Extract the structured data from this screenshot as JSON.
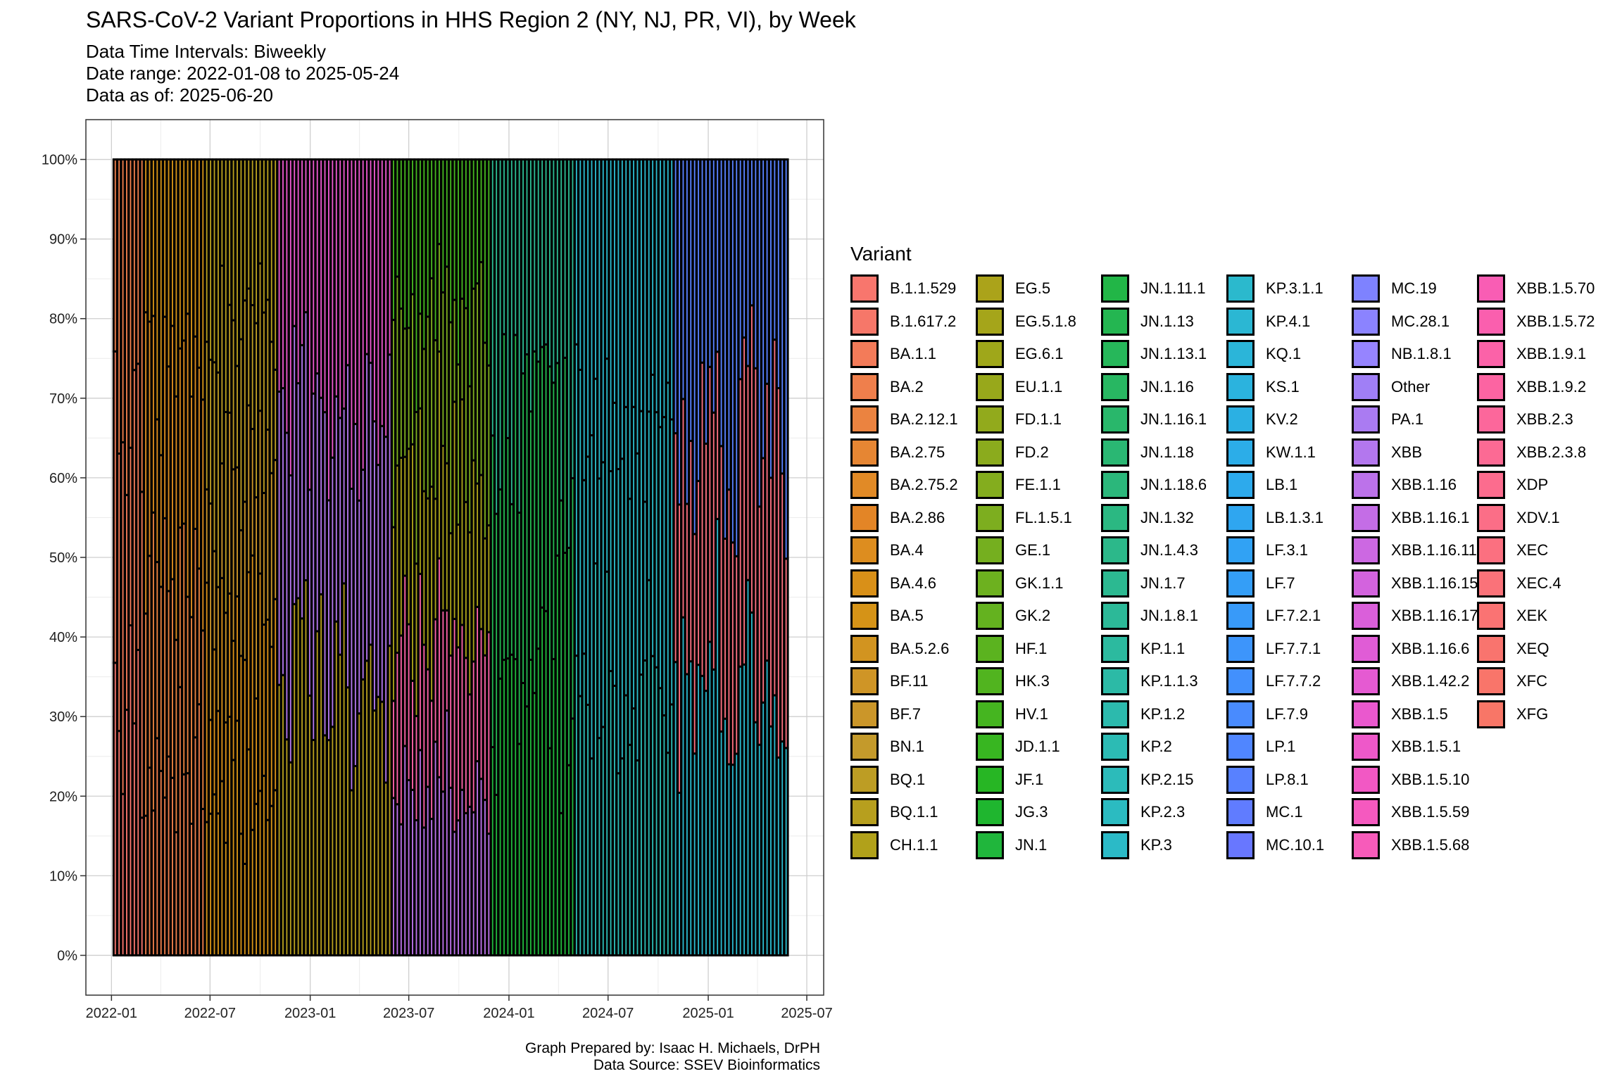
{
  "title": "SARS-CoV-2 Variant Proportions in HHS Region 2 (NY, NJ, PR, VI), by Week",
  "subtitle_lines": [
    "Data Time Intervals: Biweekly",
    "Date range: 2022-01-08 to 2025-05-24",
    "Data as of: 2025-06-20"
  ],
  "caption_lines": [
    "Graph Prepared by: Isaac H. Michaels, DrPH",
    "Data Source: SSEV Bioinformatics"
  ],
  "chart_data": {
    "type": "bar",
    "stacked": true,
    "normalized_to": "percent",
    "x_axis": {
      "type": "date",
      "range": [
        "2021-11-15",
        "2025-08-01"
      ],
      "tick_labels": [
        "2022-01",
        "2022-07",
        "2023-01",
        "2023-07",
        "2024-01",
        "2024-07",
        "2025-01",
        "2025-07"
      ],
      "tick_dates": [
        "2022-01-01",
        "2022-07-01",
        "2023-01-01",
        "2023-07-01",
        "2024-01-01",
        "2024-07-01",
        "2025-01-01",
        "2025-07-01"
      ]
    },
    "y_axis": {
      "range": [
        -5,
        105
      ],
      "tick_labels": [
        "0%",
        "10%",
        "20%",
        "30%",
        "40%",
        "50%",
        "60%",
        "70%",
        "80%",
        "90%",
        "100%"
      ],
      "tick_values": [
        0,
        10,
        20,
        30,
        40,
        50,
        60,
        70,
        80,
        90,
        100
      ]
    },
    "grid": true,
    "bar_outline_color": "#000000",
    "bar_interval_days": 7,
    "date_first": "2022-01-08",
    "date_last": "2025-05-24",
    "legend": {
      "title": "Variant",
      "placement": "right",
      "items": [
        {
          "label": "B.1.1.529",
          "color": "#F8766D"
        },
        {
          "label": "B.1.617.2",
          "color": "#F67769"
        },
        {
          "label": "BA.1.1",
          "color": "#F37B59"
        },
        {
          "label": "BA.2",
          "color": "#EF7F4C"
        },
        {
          "label": "BA.2.12.1",
          "color": "#EB8340"
        },
        {
          "label": "BA.2.75",
          "color": "#E68633"
        },
        {
          "label": "BA.2.75.2",
          "color": "#E18A26"
        },
        {
          "label": "BA.2.86",
          "color": "#E38526"
        },
        {
          "label": "BA.4",
          "color": "#DD8D1F"
        },
        {
          "label": "BA.4.6",
          "color": "#D99018"
        },
        {
          "label": "BA.5",
          "color": "#D59317"
        },
        {
          "label": "BA.5.2.6",
          "color": "#D29420"
        },
        {
          "label": "BF.11",
          "color": "#CF9526"
        },
        {
          "label": "BF.7",
          "color": "#CB9629"
        },
        {
          "label": "BN.1",
          "color": "#C49A2B"
        },
        {
          "label": "BQ.1",
          "color": "#BD9D24"
        },
        {
          "label": "BQ.1.1",
          "color": "#B79F1E"
        },
        {
          "label": "CH.1.1",
          "color": "#B1A11A"
        },
        {
          "label": "EG.5",
          "color": "#ABA31A"
        },
        {
          "label": "EG.5.1.8",
          "color": "#A5A51A"
        },
        {
          "label": "EG.6.1",
          "color": "#9FA71A"
        },
        {
          "label": "EU.1.1",
          "color": "#98A81B"
        },
        {
          "label": "FD.1.1",
          "color": "#92AA1C"
        },
        {
          "label": "FD.2",
          "color": "#8BAB1D"
        },
        {
          "label": "FE.1.1",
          "color": "#84AD1E"
        },
        {
          "label": "FL.1.5.1",
          "color": "#7DAE1F"
        },
        {
          "label": "GE.1",
          "color": "#75AF1F"
        },
        {
          "label": "GK.1.1",
          "color": "#6DB11F"
        },
        {
          "label": "GK.2",
          "color": "#64B21F"
        },
        {
          "label": "HF.1",
          "color": "#5BB31F"
        },
        {
          "label": "HK.3",
          "color": "#51B41F"
        },
        {
          "label": "HV.1",
          "color": "#45B520"
        },
        {
          "label": "JD.1.1",
          "color": "#38B621"
        },
        {
          "label": "JF.1",
          "color": "#27B624"
        },
        {
          "label": "JG.3",
          "color": "#1FB62F"
        },
        {
          "label": "JN.1",
          "color": "#20B63C"
        },
        {
          "label": "JN.1.11.1",
          "color": "#22B647"
        },
        {
          "label": "JN.1.13",
          "color": "#24B651"
        },
        {
          "label": "JN.1.13.1",
          "color": "#26B75A"
        },
        {
          "label": "JN.1.16",
          "color": "#28B762"
        },
        {
          "label": "JN.1.16.1",
          "color": "#29B76B"
        },
        {
          "label": "JN.1.18",
          "color": "#2AB773"
        },
        {
          "label": "JN.1.18.6",
          "color": "#2BB77B"
        },
        {
          "label": "JN.1.32",
          "color": "#2BB882"
        },
        {
          "label": "JN.1.4.3",
          "color": "#2CB88A"
        },
        {
          "label": "JN.1.7",
          "color": "#2CB991"
        },
        {
          "label": "JN.1.8.1",
          "color": "#2CB998"
        },
        {
          "label": "KP.1.1",
          "color": "#2CBA9F"
        },
        {
          "label": "KP.1.1.3",
          "color": "#2CBAA6"
        },
        {
          "label": "KP.1.2",
          "color": "#2CBAAD"
        },
        {
          "label": "KP.2",
          "color": "#2CBBB4"
        },
        {
          "label": "KP.2.15",
          "color": "#2CBBBA"
        },
        {
          "label": "KP.2.3",
          "color": "#2BBBC1"
        },
        {
          "label": "KP.3",
          "color": "#2BBAC7"
        },
        {
          "label": "KP.3.1.1",
          "color": "#2BB9CD"
        },
        {
          "label": "KP.4.1",
          "color": "#2BB7D3"
        },
        {
          "label": "KQ.1",
          "color": "#2BB5D9"
        },
        {
          "label": "KS.1",
          "color": "#2BB3DE"
        },
        {
          "label": "KV.2",
          "color": "#2BB0E3"
        },
        {
          "label": "KW.1.1",
          "color": "#2CADE8"
        },
        {
          "label": "LB.1",
          "color": "#2DAAEC"
        },
        {
          "label": "LB.1.3.1",
          "color": "#2FA6F0"
        },
        {
          "label": "LF.3.1",
          "color": "#31A2F4"
        },
        {
          "label": "LF.7",
          "color": "#349EF7"
        },
        {
          "label": "LF.7.2.1",
          "color": "#389AF9"
        },
        {
          "label": "LF.7.7.1",
          "color": "#3D95FB"
        },
        {
          "label": "LF.7.7.2",
          "color": "#4290FD"
        },
        {
          "label": "LF.7.9",
          "color": "#498BFE"
        },
        {
          "label": "LP.1",
          "color": "#5086FF"
        },
        {
          "label": "LP.8.1",
          "color": "#5881FF"
        },
        {
          "label": "MC.1",
          "color": "#607CFF"
        },
        {
          "label": "MC.10.1",
          "color": "#6877FF"
        },
        {
          "label": "MC.19",
          "color": "#7E82FF"
        },
        {
          "label": "MC.28.1",
          "color": "#8B83FF"
        },
        {
          "label": "NB.1.8.1",
          "color": "#9684FF"
        },
        {
          "label": "Other",
          "color": "#A07FF6"
        },
        {
          "label": "PA.1",
          "color": "#AA7BF2"
        },
        {
          "label": "XBB",
          "color": "#B377EE"
        },
        {
          "label": "XBB.1.16",
          "color": "#BC72EA"
        },
        {
          "label": "XBB.1.16.1",
          "color": "#C46DE6"
        },
        {
          "label": "XBB.1.16.11",
          "color": "#CC68E2"
        },
        {
          "label": "XBB.1.16.15",
          "color": "#D363DE"
        },
        {
          "label": "XBB.1.16.17",
          "color": "#DA5FDA"
        },
        {
          "label": "XBB.1.16.6",
          "color": "#E05CD6"
        },
        {
          "label": "XBB.1.42.2",
          "color": "#E55AD2"
        },
        {
          "label": "XBB.1.5",
          "color": "#EA58CE"
        },
        {
          "label": "XBB.1.5.1",
          "color": "#EE58C9"
        },
        {
          "label": "XBB.1.5.10",
          "color": "#F258C4"
        },
        {
          "label": "XBB.1.5.59",
          "color": "#F559BF"
        },
        {
          "label": "XBB.1.5.68",
          "color": "#F75BBA"
        },
        {
          "label": "XBB.1.5.70",
          "color": "#F95DB4"
        },
        {
          "label": "XBB.1.5.72",
          "color": "#FA5FAE"
        },
        {
          "label": "XBB.1.9.1",
          "color": "#FB62A8"
        },
        {
          "label": "XBB.1.9.2",
          "color": "#FC64A2"
        },
        {
          "label": "XBB.2.3",
          "color": "#FC679B"
        },
        {
          "label": "XBB.2.3.8",
          "color": "#FC6A94"
        },
        {
          "label": "XDP",
          "color": "#FC6C8E"
        },
        {
          "label": "XDV.1",
          "color": "#FB6E87"
        },
        {
          "label": "XEC",
          "color": "#FB7080"
        },
        {
          "label": "XEC.4",
          "color": "#FA7279"
        },
        {
          "label": "XEK",
          "color": "#FA7373"
        },
        {
          "label": "XEQ",
          "color": "#F9746E"
        },
        {
          "label": "XFC",
          "color": "#F9756A"
        },
        {
          "label": "XFG",
          "color": "#F87667"
        }
      ]
    },
    "approximate_dominant_lineages": [
      {
        "from": "2022-01-08",
        "to": "2022-03-05",
        "lineages": [
          "B.1.1.529",
          "BA.1.1",
          "BA.2"
        ]
      },
      {
        "from": "2022-03-05",
        "to": "2022-06-25",
        "lineages": [
          "BA.2",
          "BA.2.12.1",
          "BA.4",
          "BA.5"
        ]
      },
      {
        "from": "2022-06-25",
        "to": "2022-11-05",
        "lineages": [
          "BA.5",
          "BA.4.6",
          "BF.7",
          "BQ.1",
          "BQ.1.1"
        ]
      },
      {
        "from": "2022-11-05",
        "to": "2023-06-03",
        "lineages": [
          "BQ.1.1",
          "XBB",
          "XBB.1.5"
        ]
      },
      {
        "from": "2023-06-03",
        "to": "2023-12-02",
        "lineages": [
          "XBB.1.16",
          "XBB.1.9.1",
          "EG.5",
          "FL.1.5.1",
          "HV.1"
        ]
      },
      {
        "from": "2023-12-02",
        "to": "2024-05-04",
        "lineages": [
          "JN.1",
          "JN.1.13",
          "JN.1.7"
        ]
      },
      {
        "from": "2024-05-04",
        "to": "2024-11-02",
        "lineages": [
          "KP.2",
          "KP.3",
          "KP.3.1.1"
        ]
      },
      {
        "from": "2024-11-02",
        "to": "2025-05-24",
        "lineages": [
          "KP.3.1.1",
          "XEC",
          "LP.8.1"
        ]
      }
    ]
  }
}
